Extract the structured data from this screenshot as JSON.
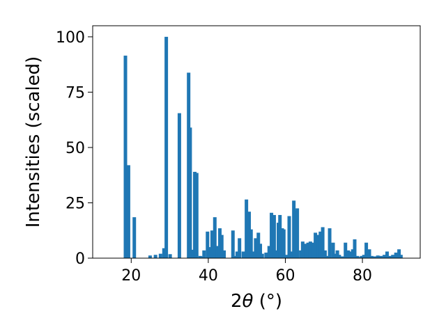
{
  "chart_data": {
    "type": "bar",
    "title": "",
    "xlabel": "2θ (°)",
    "xlabel_parts": {
      "main": "2",
      "symbol": "θ",
      "unit": " (°)"
    },
    "ylabel": "Intensities (scaled)",
    "xlim": [
      10,
      95
    ],
    "ylim": [
      0,
      105
    ],
    "xticks": [
      20,
      40,
      60,
      80
    ],
    "yticks": [
      0,
      25,
      50,
      75,
      100
    ],
    "grid": false,
    "legend": "none",
    "bar_color": "#1f77b4",
    "x": [
      18.5,
      19.3,
      20.8,
      24.9,
      26.3,
      27.6,
      28.5,
      29.1,
      30.1,
      32.5,
      34.9,
      35.3,
      36.0,
      36.5,
      37.0,
      37.9,
      38.5,
      38.9,
      39.8,
      40.4,
      41.0,
      41.7,
      42.4,
      43.0,
      43.5,
      44.1,
      46.4,
      46.9,
      47.5,
      48.1,
      49.1,
      49.9,
      50.6,
      51.1,
      51.7,
      52.3,
      53.0,
      53.5,
      54.0,
      55.0,
      55.8,
      56.4,
      57.1,
      57.6,
      58.2,
      58.6,
      59.2,
      59.6,
      60.3,
      61.0,
      61.7,
      62.2,
      62.6,
      63.1,
      64.0,
      64.5,
      65.3,
      65.9,
      66.5,
      67.3,
      67.8,
      68.6,
      69.1,
      69.7,
      70.3,
      70.8,
      71.5,
      72.4,
      72.9,
      73.5,
      74.0,
      74.8,
      75.6,
      76.3,
      76.9,
      77.5,
      78.0,
      78.7,
      79.1,
      79.8,
      80.4,
      81.0,
      81.8,
      82.4,
      83.2,
      84.0,
      84.8,
      85.7,
      86.4,
      87.2,
      87.9,
      88.7,
      89.5,
      90.0
    ],
    "values": [
      91.5,
      42.0,
      18.5,
      1.2,
      1.5,
      2.0,
      4.5,
      100.0,
      1.8,
      65.5,
      83.8,
      59.0,
      3.8,
      39.0,
      38.5,
      1.0,
      0.8,
      3.5,
      12.0,
      5.0,
      12.5,
      18.5,
      5.5,
      13.5,
      10.5,
      3.5,
      12.5,
      1.0,
      3.0,
      9.0,
      3.0,
      26.5,
      21.0,
      13.0,
      3.0,
      9.0,
      11.5,
      6.5,
      2.0,
      2.5,
      5.5,
      20.5,
      19.5,
      3.5,
      16.0,
      19.5,
      13.5,
      13.0,
      1.5,
      19.0,
      3.0,
      26.0,
      21.5,
      22.5,
      3.5,
      7.5,
      6.5,
      7.0,
      7.5,
      7.0,
      11.5,
      10.5,
      12.0,
      14.0,
      3.5,
      1.0,
      13.5,
      7.0,
      2.0,
      3.5,
      1.5,
      0.8,
      7.0,
      3.5,
      3.0,
      4.0,
      8.5,
      1.0,
      0.5,
      1.0,
      1.5,
      7.0,
      4.0,
      1.0,
      0.8,
      1.2,
      1.0,
      1.5,
      3.0,
      1.0,
      1.5,
      2.5,
      4.0,
      1.5
    ]
  }
}
